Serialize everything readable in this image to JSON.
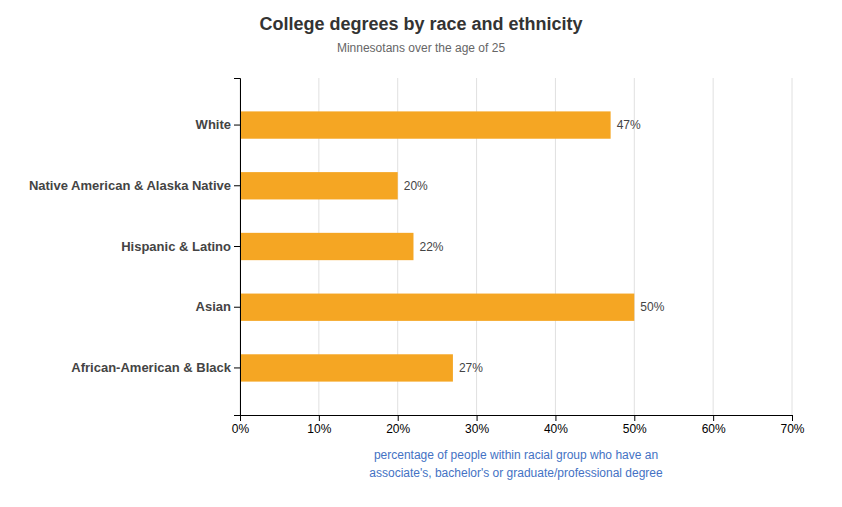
{
  "chart_data": {
    "type": "bar",
    "orientation": "horizontal",
    "title": "College degrees by race and ethnicity",
    "subtitle": "Minnesotans over the age of 25",
    "xlabel": "percentage of people within racial group who have an\nassociate's, bachelor's or graduate/professional degree",
    "categories": [
      "White",
      "Native American & Alaska Native",
      "Hispanic & Latino",
      "Asian",
      "African-American & Black"
    ],
    "values": [
      47,
      20,
      22,
      50,
      27
    ],
    "data_labels": true,
    "value_labels": [
      "47%",
      "20%",
      "22%",
      "50%",
      "27%"
    ],
    "color": "#F5A623",
    "xlim": [
      0,
      70
    ],
    "xticks": [
      {
        "value": 0,
        "label": "0%"
      },
      {
        "value": 10,
        "label": "10%"
      },
      {
        "value": 20,
        "label": "20%"
      },
      {
        "value": 30,
        "label": "30%"
      },
      {
        "value": 40,
        "label": "40%"
      },
      {
        "value": 50,
        "label": "50%"
      },
      {
        "value": 60,
        "label": "60%"
      },
      {
        "value": 70,
        "label": "70%"
      }
    ],
    "grid": true
  }
}
